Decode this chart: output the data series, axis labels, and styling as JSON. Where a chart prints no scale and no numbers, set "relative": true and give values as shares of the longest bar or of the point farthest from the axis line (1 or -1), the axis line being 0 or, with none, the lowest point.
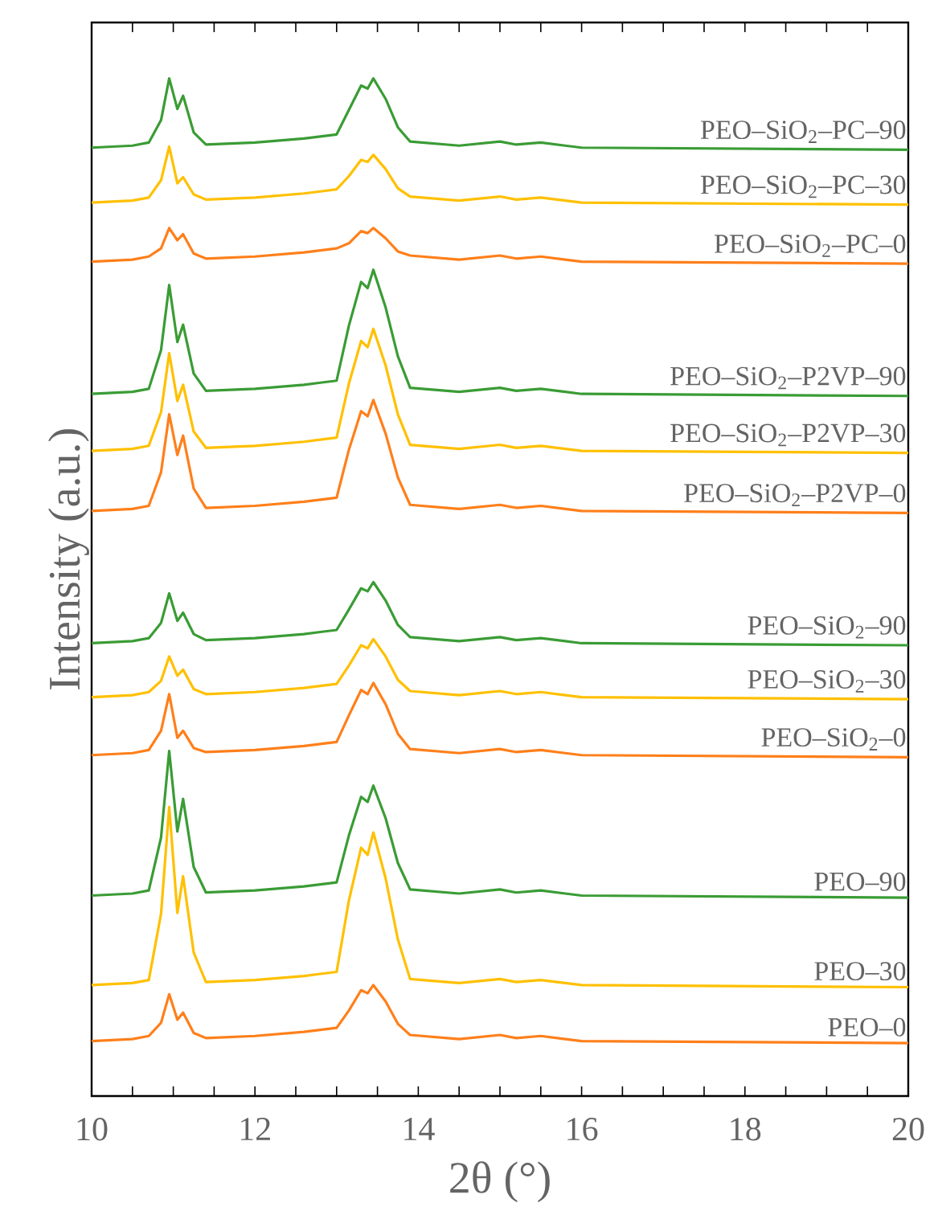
{
  "chart_data": {
    "type": "line",
    "relative": true,
    "xlabel": "2θ (°)",
    "ylabel": "Intensity (a.u.)",
    "grid": false,
    "marker": "none",
    "line_style": "solid",
    "xlim": [
      10,
      20
    ],
    "xticks": [
      10,
      {
        "value": 10.5,
        "label": null
      },
      {
        "value": 11,
        "label": null
      },
      {
        "value": 11.5,
        "label": null
      },
      12,
      {
        "value": 12.5,
        "label": null
      },
      {
        "value": 13,
        "label": null
      },
      {
        "value": 13.5,
        "label": null
      },
      14,
      {
        "value": 14.5,
        "label": null
      },
      {
        "value": 15,
        "label": null
      },
      {
        "value": 15.5,
        "label": null
      },
      16,
      {
        "value": 16.5,
        "label": null
      },
      {
        "value": 17,
        "label": null
      },
      {
        "value": 17.5,
        "label": null
      },
      18,
      {
        "value": 18.5,
        "label": null
      },
      {
        "value": 19,
        "label": null
      },
      {
        "value": 19.5,
        "label": null
      },
      20
    ],
    "x": [
      10,
      10.5,
      10.7,
      10.85,
      10.95,
      11.05,
      11.12,
      11.25,
      11.4,
      12.0,
      12.6,
      12.8,
      13.0,
      13.15,
      13.3,
      13.38,
      13.45,
      13.6,
      13.75,
      13.9,
      14.5,
      15.0,
      15.2,
      15.5,
      15.8,
      16.0,
      20
    ],
    "series": [
      {
        "name": "PEO–SiO$_{2}$–PC–90",
        "color": "#3a9c35",
        "values": [
          0.932,
          0.934,
          0.937,
          0.959,
          1.0,
          0.97,
          0.983,
          0.947,
          0.935,
          0.937,
          0.941,
          0.943,
          0.945,
          0.969,
          0.993,
          0.99,
          1.0,
          0.98,
          0.952,
          0.938,
          0.934,
          0.938,
          0.935,
          0.937,
          0.934,
          0.932,
          0.93
        ]
      },
      {
        "name": "PEO–SiO$_{2}$–PC–30",
        "color": "#ffc000",
        "values": [
          0.878,
          0.88,
          0.883,
          0.9,
          0.933,
          0.897,
          0.903,
          0.886,
          0.881,
          0.883,
          0.887,
          0.889,
          0.891,
          0.904,
          0.92,
          0.918,
          0.925,
          0.911,
          0.892,
          0.884,
          0.88,
          0.884,
          0.881,
          0.883,
          0.88,
          0.878,
          0.876
        ]
      },
      {
        "name": "PEO–SiO$_{2}$–PC–0",
        "color": "#ff7f1a",
        "values": [
          0.82,
          0.822,
          0.825,
          0.833,
          0.853,
          0.841,
          0.847,
          0.828,
          0.823,
          0.825,
          0.829,
          0.831,
          0.833,
          0.838,
          0.85,
          0.848,
          0.853,
          0.843,
          0.83,
          0.826,
          0.822,
          0.826,
          0.823,
          0.825,
          0.822,
          0.82,
          0.818
        ]
      },
      {
        "name": "PEO–SiO$_{2}$–P2VP–90",
        "color": "#3a9c35",
        "values": [
          0.69,
          0.692,
          0.695,
          0.733,
          0.797,
          0.741,
          0.758,
          0.71,
          0.693,
          0.695,
          0.699,
          0.701,
          0.703,
          0.757,
          0.8,
          0.794,
          0.812,
          0.775,
          0.727,
          0.696,
          0.692,
          0.696,
          0.693,
          0.695,
          0.692,
          0.69,
          0.688
        ]
      },
      {
        "name": "PEO–SiO$_{2}$–P2VP–30",
        "color": "#ffc000",
        "values": [
          0.634,
          0.636,
          0.639,
          0.672,
          0.73,
          0.683,
          0.699,
          0.653,
          0.637,
          0.639,
          0.643,
          0.645,
          0.647,
          0.7,
          0.742,
          0.736,
          0.754,
          0.718,
          0.67,
          0.64,
          0.636,
          0.64,
          0.637,
          0.639,
          0.636,
          0.634,
          0.632
        ]
      },
      {
        "name": "PEO–SiO$_{2}$–P2VP–0",
        "color": "#ff7f1a",
        "values": [
          0.575,
          0.577,
          0.58,
          0.613,
          0.67,
          0.63,
          0.649,
          0.597,
          0.578,
          0.58,
          0.584,
          0.586,
          0.588,
          0.635,
          0.673,
          0.668,
          0.684,
          0.651,
          0.608,
          0.581,
          0.577,
          0.581,
          0.578,
          0.58,
          0.577,
          0.575,
          0.573
        ]
      },
      {
        "name": "PEO–SiO$_{2}$–90",
        "color": "#3a9c35",
        "values": [
          0.445,
          0.447,
          0.45,
          0.465,
          0.494,
          0.467,
          0.475,
          0.454,
          0.448,
          0.45,
          0.454,
          0.456,
          0.458,
          0.478,
          0.499,
          0.496,
          0.505,
          0.487,
          0.463,
          0.451,
          0.447,
          0.451,
          0.448,
          0.45,
          0.447,
          0.445,
          0.443
        ]
      },
      {
        "name": "PEO–SiO$_{2}$–30",
        "color": "#ffc000",
        "values": [
          0.392,
          0.394,
          0.397,
          0.408,
          0.432,
          0.413,
          0.419,
          0.4,
          0.395,
          0.397,
          0.401,
          0.403,
          0.405,
          0.423,
          0.443,
          0.44,
          0.449,
          0.432,
          0.409,
          0.398,
          0.394,
          0.398,
          0.395,
          0.397,
          0.394,
          0.392,
          0.39
        ]
      },
      {
        "name": "PEO–SiO$_{2}$–0",
        "color": "#ff7f1a",
        "values": [
          0.335,
          0.337,
          0.34,
          0.359,
          0.395,
          0.352,
          0.359,
          0.342,
          0.338,
          0.34,
          0.344,
          0.346,
          0.348,
          0.374,
          0.399,
          0.395,
          0.406,
          0.385,
          0.356,
          0.341,
          0.337,
          0.341,
          0.338,
          0.34,
          0.337,
          0.335,
          0.333
        ]
      },
      {
        "name": "PEO–90",
        "color": "#3a9c35",
        "values": [
          0.197,
          0.199,
          0.202,
          0.254,
          0.339,
          0.26,
          0.292,
          0.225,
          0.2,
          0.202,
          0.206,
          0.208,
          0.21,
          0.256,
          0.294,
          0.289,
          0.305,
          0.273,
          0.229,
          0.203,
          0.199,
          0.203,
          0.2,
          0.202,
          0.199,
          0.197,
          0.195
        ]
      },
      {
        "name": "PEO–30",
        "color": "#ffc000",
        "values": [
          0.109,
          0.111,
          0.114,
          0.179,
          0.284,
          0.18,
          0.216,
          0.141,
          0.112,
          0.114,
          0.118,
          0.12,
          0.122,
          0.192,
          0.244,
          0.237,
          0.259,
          0.214,
          0.154,
          0.115,
          0.111,
          0.115,
          0.112,
          0.114,
          0.111,
          0.109,
          0.107
        ]
      },
      {
        "name": "PEO–0",
        "color": "#ff7f1a",
        "values": [
          0.054,
          0.056,
          0.059,
          0.072,
          0.1,
          0.075,
          0.082,
          0.062,
          0.057,
          0.059,
          0.063,
          0.065,
          0.067,
          0.084,
          0.104,
          0.101,
          0.109,
          0.093,
          0.071,
          0.06,
          0.056,
          0.06,
          0.057,
          0.059,
          0.056,
          0.054,
          0.052
        ]
      }
    ]
  }
}
